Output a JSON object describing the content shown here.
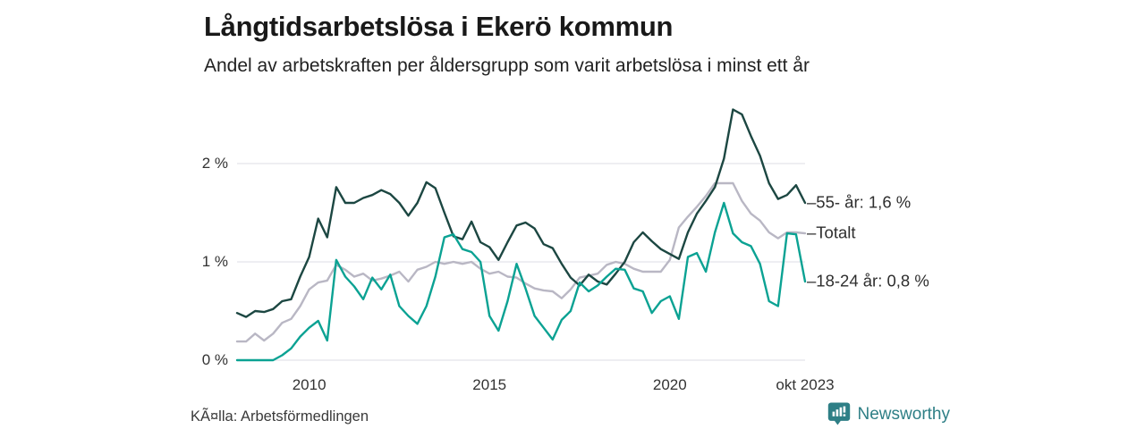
{
  "header": {
    "title": "Långtidsarbetslösa i Ekerö kommun",
    "subtitle": "Andel av arbetskraften per åldersgrupp som varit arbetslösa i minst ett år"
  },
  "footer": {
    "source": "KÃ¤lla: Arbetsförmedlingen",
    "brand": "Newsworthy",
    "brand_color": "#2e7f86"
  },
  "chart_data": {
    "type": "line",
    "title": "Långtidsarbetslösa i Ekerö kommun",
    "subtitle": "Andel av arbetskraften per åldersgrupp som varit arbetslösa i minst ett år",
    "xlabel": "",
    "ylabel": "",
    "xlim": [
      2008,
      2023.75
    ],
    "ylim": [
      0,
      2.65
    ],
    "grid": "horizontal",
    "grid_color": "#e3e3e9",
    "legend_position": "right-end-labels",
    "x": [
      2008,
      2008.25,
      2008.5,
      2008.75,
      2009,
      2009.25,
      2009.5,
      2009.75,
      2010,
      2010.25,
      2010.5,
      2010.75,
      2011,
      2011.25,
      2011.5,
      2011.75,
      2012,
      2012.25,
      2012.5,
      2012.75,
      2013,
      2013.25,
      2013.5,
      2013.75,
      2014,
      2014.25,
      2014.5,
      2014.75,
      2015,
      2015.25,
      2015.5,
      2015.75,
      2016,
      2016.25,
      2016.5,
      2016.75,
      2017,
      2017.25,
      2017.5,
      2017.75,
      2018,
      2018.25,
      2018.5,
      2018.75,
      2019,
      2019.25,
      2019.5,
      2019.75,
      2020,
      2020.25,
      2020.5,
      2020.75,
      2021,
      2021.25,
      2021.5,
      2021.75,
      2022,
      2022.25,
      2022.5,
      2022.75,
      2023,
      2023.25,
      2023.5,
      2023.75
    ],
    "yticks": [
      {
        "value": 0,
        "label": "0 %"
      },
      {
        "value": 1,
        "label": "1 %"
      },
      {
        "value": 2,
        "label": "2 %"
      }
    ],
    "xticks": [
      {
        "value": 2010,
        "label": "2010"
      },
      {
        "value": 2015,
        "label": "2015"
      },
      {
        "value": 2020,
        "label": "2020"
      },
      {
        "value": 2023.75,
        "label": "okt 2023"
      }
    ],
    "series": [
      {
        "name": "Totalt",
        "color": "#b9b7c4",
        "end_label": {
          "connector": "–",
          "text": "Totalt"
        },
        "values": [
          0.19,
          0.19,
          0.27,
          0.2,
          0.27,
          0.38,
          0.42,
          0.55,
          0.72,
          0.79,
          0.81,
          0.97,
          0.92,
          0.85,
          0.88,
          0.81,
          0.83,
          0.86,
          0.9,
          0.8,
          0.92,
          0.95,
          1.0,
          0.98,
          1.0,
          0.98,
          1.0,
          0.93,
          0.88,
          0.9,
          0.85,
          0.84,
          0.78,
          0.73,
          0.71,
          0.7,
          0.63,
          0.72,
          0.84,
          0.86,
          0.88,
          0.97,
          1.0,
          0.98,
          0.93,
          0.9,
          0.9,
          0.9,
          1.02,
          1.35,
          1.46,
          1.56,
          1.67,
          1.8,
          1.8,
          1.8,
          1.62,
          1.49,
          1.42,
          1.3,
          1.24,
          1.3,
          1.3,
          1.29
        ]
      },
      {
        "name": "55- år",
        "color": "#1c4742",
        "end_label": {
          "connector": "–",
          "text": "55- år: 1,6 %"
        },
        "values": [
          0.48,
          0.44,
          0.5,
          0.49,
          0.52,
          0.6,
          0.62,
          0.85,
          1.05,
          1.44,
          1.25,
          1.76,
          1.6,
          1.6,
          1.65,
          1.68,
          1.73,
          1.69,
          1.6,
          1.47,
          1.6,
          1.81,
          1.75,
          1.5,
          1.26,
          1.23,
          1.41,
          1.2,
          1.15,
          1.02,
          1.2,
          1.37,
          1.4,
          1.34,
          1.18,
          1.14,
          0.98,
          0.84,
          0.76,
          0.87,
          0.8,
          0.77,
          0.88,
          1.0,
          1.2,
          1.3,
          1.21,
          1.13,
          1.08,
          1.03,
          1.3,
          1.49,
          1.62,
          1.76,
          2.05,
          2.55,
          2.5,
          2.28,
          2.08,
          1.8,
          1.64,
          1.68,
          1.78,
          1.6
        ]
      },
      {
        "name": "18-24 år",
        "color": "#0ba293",
        "end_label": {
          "connector": "–",
          "text": "18-24 år: 0,8 %"
        },
        "values": [
          0.0,
          0.0,
          0.0,
          0.0,
          0.0,
          0.05,
          0.12,
          0.24,
          0.33,
          0.4,
          0.2,
          1.02,
          0.85,
          0.75,
          0.62,
          0.84,
          0.72,
          0.87,
          0.55,
          0.45,
          0.37,
          0.55,
          0.85,
          1.25,
          1.28,
          1.13,
          1.1,
          1.0,
          0.45,
          0.3,
          0.6,
          0.98,
          0.73,
          0.45,
          0.33,
          0.21,
          0.41,
          0.5,
          0.79,
          0.7,
          0.76,
          0.85,
          0.93,
          0.92,
          0.73,
          0.7,
          0.48,
          0.6,
          0.65,
          0.42,
          1.05,
          1.09,
          0.9,
          1.3,
          1.6,
          1.29,
          1.2,
          1.16,
          0.98,
          0.6,
          0.55,
          1.29,
          1.28,
          0.8
        ]
      }
    ]
  }
}
